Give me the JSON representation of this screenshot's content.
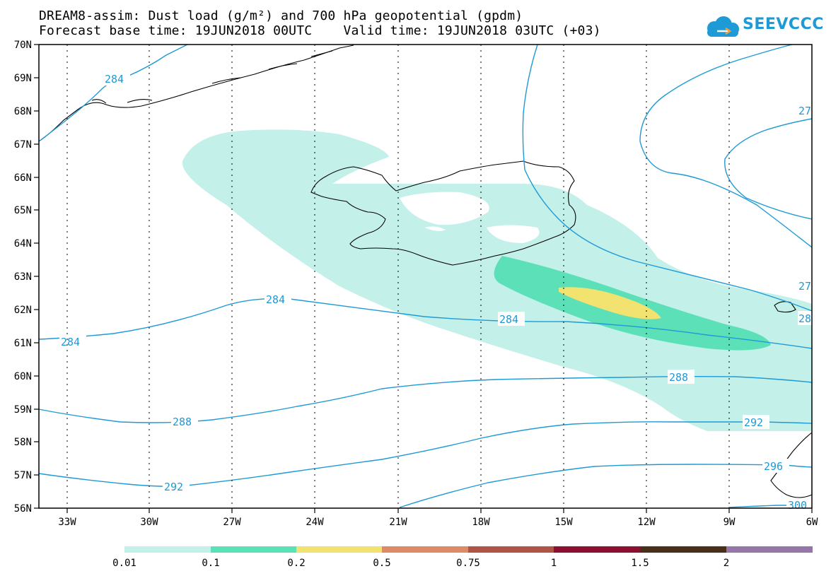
{
  "header": {
    "line1": "DREAM8-assim: Dust load (g/m²) and 700 hPa geopotential (gpdm)",
    "line2": "Forecast base time: 19JUN2018 00UTC    Valid time: 19JUN2018 03UTC (+03)"
  },
  "logo": {
    "text": "SEEVCCC",
    "color": "#1e9ad6"
  },
  "map": {
    "lon_ticks": [
      "33W",
      "30W",
      "27W",
      "24W",
      "21W",
      "18W",
      "15W",
      "12W",
      "9W",
      "6W"
    ],
    "lat_ticks": [
      "70N",
      "69N",
      "68N",
      "67N",
      "66N",
      "65N",
      "64N",
      "63N",
      "62N",
      "61N",
      "60N",
      "59N",
      "58N",
      "57N",
      "56N"
    ],
    "contour_labels": [
      "284",
      "284",
      "284",
      "284",
      "288",
      "288",
      "292",
      "292",
      "296",
      "300",
      "27",
      "27",
      "28"
    ],
    "contour_color": "#1e9ad6"
  },
  "colorbar": {
    "labels": [
      "0.01",
      "0.1",
      "0.2",
      "0.5",
      "0.75",
      "1",
      "1.5",
      "2"
    ],
    "colors": [
      "#c4f0ea",
      "#5ce0b8",
      "#f2e270",
      "#dd8a66",
      "#b05448",
      "#8c1034",
      "#4a2e18",
      "#9476a8"
    ]
  }
}
